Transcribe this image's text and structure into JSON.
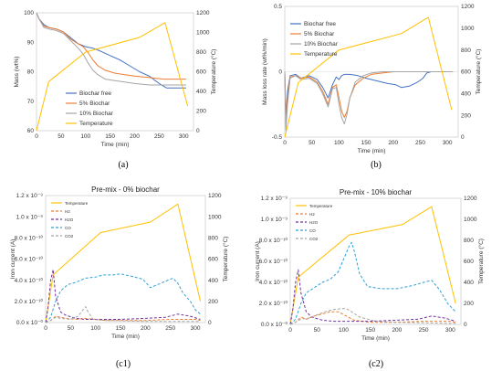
{
  "chart_data": [
    {
      "id": "a",
      "type": "line",
      "caption": "(a)",
      "title": "",
      "xlabel": "Time (min)",
      "ylabel": "Mass (wt%)",
      "y2label": "Temperature (°C)",
      "xlim": [
        0,
        320
      ],
      "ylim": [
        60,
        100
      ],
      "y2lim": [
        0,
        1200
      ],
      "xticks": [
        0,
        50,
        100,
        150,
        200,
        250,
        300
      ],
      "yticks": [
        60,
        70,
        80,
        90,
        100
      ],
      "y2ticks": [
        0,
        200,
        400,
        600,
        800,
        1000,
        1200
      ],
      "legend_position": "lower-center",
      "series": [
        {
          "name": "Biochar free",
          "axis": "y",
          "color": "#4472c4",
          "dash": "",
          "x": [
            0,
            5,
            15,
            25,
            40,
            55,
            70,
            85,
            100,
            115,
            130,
            150,
            170,
            190,
            210,
            230,
            250,
            265,
            280,
            295,
            305
          ],
          "y": [
            100,
            98,
            96,
            95,
            94.5,
            93.5,
            91.5,
            89.5,
            88.5,
            88,
            87,
            85.5,
            84,
            82,
            80,
            78.5,
            76,
            74.5,
            74.5,
            74.5,
            74.5
          ]
        },
        {
          "name": "5% Biochar",
          "axis": "y",
          "color": "#ed7d31",
          "dash": "",
          "x": [
            0,
            5,
            15,
            25,
            40,
            55,
            70,
            85,
            95,
            105,
            115,
            125,
            140,
            160,
            180,
            200,
            230,
            260,
            280,
            305
          ],
          "y": [
            100,
            98,
            95.5,
            95,
            94.5,
            93.5,
            91,
            89.5,
            88.5,
            86.5,
            84,
            82,
            80.5,
            79.5,
            79,
            78.5,
            78,
            77.5,
            77.5,
            77.5
          ]
        },
        {
          "name": "10% Biochar",
          "axis": "y",
          "color": "#a5a5a5",
          "dash": "",
          "x": [
            0,
            5,
            15,
            25,
            40,
            55,
            70,
            85,
            95,
            105,
            115,
            125,
            140,
            160,
            180,
            200,
            230,
            260,
            280,
            305
          ],
          "y": [
            100,
            98,
            95,
            94.5,
            94,
            93,
            90.5,
            88,
            86,
            83,
            80.5,
            79,
            77.5,
            77,
            76.5,
            76,
            75.5,
            75.5,
            75.5,
            75.5
          ]
        },
        {
          "name": "Temperature",
          "axis": "y2",
          "color": "#ffc000",
          "dash": "",
          "x": [
            0,
            25,
            100,
            210,
            262,
            308
          ],
          "y": [
            0,
            500,
            800,
            950,
            1100,
            250
          ]
        }
      ]
    },
    {
      "id": "b",
      "type": "line",
      "caption": "(b)",
      "title": "",
      "xlabel": "Time (min)",
      "ylabel": "Mass loss rate (wt%/min)",
      "y2label": "Temperature (°C)",
      "xlim": [
        0,
        320
      ],
      "ylim": [
        -0.5,
        0.5
      ],
      "y2lim": [
        0,
        1200
      ],
      "xticks": [
        0,
        50,
        100,
        150,
        200,
        250,
        300
      ],
      "yticks": [
        -0.5,
        0,
        0.5
      ],
      "y2ticks": [
        0,
        200,
        400,
        600,
        800,
        1000,
        1200
      ],
      "legend_position": "top-left",
      "series": [
        {
          "name": "Biochar free",
          "axis": "y",
          "color": "#4472c4",
          "dash": "",
          "x": [
            0,
            2,
            5,
            10,
            20,
            30,
            45,
            60,
            70,
            80,
            88,
            95,
            100,
            105,
            110,
            120,
            135,
            150,
            170,
            190,
            205,
            215,
            230,
            245,
            255,
            262,
            270,
            285,
            300,
            310
          ],
          "y": [
            0,
            -0.35,
            -0.15,
            -0.03,
            -0.02,
            -0.05,
            -0.03,
            -0.06,
            -0.12,
            -0.2,
            -0.1,
            -0.04,
            -0.06,
            -0.03,
            -0.02,
            -0.02,
            -0.03,
            -0.05,
            -0.07,
            -0.09,
            -0.1,
            -0.12,
            -0.11,
            -0.08,
            -0.05,
            -0.01,
            0,
            0,
            0,
            0
          ]
        },
        {
          "name": "5% Biochar",
          "axis": "y",
          "color": "#ed7d31",
          "dash": "",
          "x": [
            0,
            2,
            5,
            10,
            20,
            30,
            45,
            60,
            70,
            80,
            88,
            95,
            100,
            105,
            110,
            115,
            120,
            130,
            145,
            160,
            180,
            200,
            230,
            260,
            270,
            285,
            300,
            310
          ],
          "y": [
            0,
            -0.4,
            -0.2,
            -0.04,
            -0.03,
            -0.05,
            -0.04,
            -0.08,
            -0.15,
            -0.25,
            -0.12,
            -0.1,
            -0.2,
            -0.3,
            -0.35,
            -0.3,
            -0.2,
            -0.1,
            -0.05,
            -0.02,
            -0.01,
            0,
            0,
            0,
            0,
            0,
            0,
            0
          ]
        },
        {
          "name": "10% Biochar",
          "axis": "y",
          "color": "#a5a5a5",
          "dash": "",
          "x": [
            0,
            2,
            5,
            10,
            20,
            30,
            45,
            60,
            70,
            80,
            88,
            95,
            100,
            105,
            110,
            115,
            120,
            130,
            145,
            160,
            180,
            200,
            230,
            260,
            270,
            285,
            300,
            310
          ],
          "y": [
            0,
            -0.45,
            -0.25,
            -0.05,
            -0.03,
            -0.06,
            -0.05,
            -0.09,
            -0.17,
            -0.27,
            -0.13,
            -0.12,
            -0.25,
            -0.35,
            -0.4,
            -0.32,
            -0.2,
            -0.08,
            -0.03,
            -0.01,
            0,
            0,
            0,
            0,
            0,
            0,
            0,
            0
          ]
        },
        {
          "name": "Temperature",
          "axis": "y2",
          "color": "#ffc000",
          "dash": "",
          "x": [
            0,
            25,
            100,
            215,
            265,
            308
          ],
          "y": [
            0,
            500,
            800,
            950,
            1100,
            250
          ]
        }
      ]
    },
    {
      "id": "c1",
      "type": "line",
      "caption": "(c1)",
      "title": "Pre-mix - 0% biochar",
      "xlabel": "Time (min)",
      "ylabel": "Iron current (A)",
      "y2label": "Temperature (°C)",
      "xlim": [
        0,
        320
      ],
      "ylim": [
        0,
        1.2
      ],
      "y2lim": [
        0,
        1200
      ],
      "xticks": [
        0,
        50,
        100,
        150,
        200,
        250,
        300
      ],
      "yticks": [
        0,
        0.2,
        0.4,
        0.6,
        0.8,
        1.0,
        1.2
      ],
      "yticklabels": [
        "0.0 x 10⁻⁰",
        "2.0 x 10⁻¹⁰",
        "4.0 x 10⁻¹⁰",
        "6.0 x 10⁻¹⁰",
        "8.0 x 10⁻¹⁰",
        "1.0 x 10⁻⁹",
        "1.2 x 10⁻⁹"
      ],
      "y2ticks": [
        0,
        200,
        400,
        600,
        800,
        1000,
        1200
      ],
      "legend_position": "top-left",
      "series": [
        {
          "name": "Temperature",
          "axis": "y2",
          "color": "#ffc000",
          "dash": "",
          "x": [
            0,
            15,
            110,
            210,
            265,
            310
          ],
          "y": [
            0,
            450,
            850,
            950,
            1120,
            200
          ]
        },
        {
          "name": "H2",
          "axis": "y",
          "color": "#ed7d31",
          "dash": "3,2",
          "x": [
            0,
            10,
            20,
            30,
            40,
            60,
            80,
            100,
            120,
            150,
            200,
            250,
            300,
            310
          ],
          "y": [
            0,
            0.02,
            0.06,
            0.05,
            0.04,
            0.03,
            0.04,
            0.03,
            0.02,
            0.02,
            0.02,
            0.03,
            0.03,
            0.02
          ]
        },
        {
          "name": "H2O",
          "axis": "y",
          "color": "#7030a0",
          "dash": "3,2",
          "x": [
            0,
            5,
            10,
            15,
            20,
            30,
            40,
            60,
            80,
            100,
            150,
            200,
            240,
            265,
            290,
            310
          ],
          "y": [
            0,
            0.15,
            0.4,
            0.5,
            0.25,
            0.1,
            0.07,
            0.04,
            0.03,
            0.03,
            0.03,
            0.04,
            0.05,
            0.08,
            0.06,
            0.03
          ]
        },
        {
          "name": "CO",
          "axis": "y",
          "color": "#2e9fd6",
          "dash": "3,2",
          "x": [
            0,
            10,
            20,
            30,
            45,
            60,
            80,
            100,
            115,
            135,
            150,
            170,
            195,
            210,
            225,
            245,
            255,
            265,
            275,
            290,
            300,
            310
          ],
          "y": [
            0,
            0.05,
            0.2,
            0.3,
            0.36,
            0.38,
            0.42,
            0.43,
            0.45,
            0.45,
            0.46,
            0.44,
            0.41,
            0.33,
            0.36,
            0.4,
            0.42,
            0.37,
            0.28,
            0.2,
            0.12,
            0.08
          ]
        },
        {
          "name": "CO2",
          "axis": "y",
          "color": "#a5a5a5",
          "dash": "3,2",
          "x": [
            0,
            10,
            20,
            30,
            50,
            65,
            75,
            80,
            85,
            95,
            120,
            200,
            300,
            310
          ],
          "y": [
            0,
            0.02,
            0.05,
            0.04,
            0.03,
            0.06,
            0.12,
            0.15,
            0.1,
            0.03,
            0.02,
            0.01,
            0.01,
            0.01
          ]
        }
      ]
    },
    {
      "id": "c2",
      "type": "line",
      "caption": "(c2)",
      "title": "Pre-mix - 10% biochar",
      "xlabel": "Time (min)",
      "ylabel": "Iron current (A)",
      "y2label": "Temperature (°C)",
      "xlim": [
        0,
        320
      ],
      "ylim": [
        0,
        1.2
      ],
      "y2lim": [
        0,
        1200
      ],
      "xticks": [
        0,
        50,
        100,
        150,
        200,
        250,
        300
      ],
      "yticks": [
        0,
        0.2,
        0.4,
        0.6,
        0.8,
        1.0,
        1.2
      ],
      "yticklabels": [
        "0.0 x 10⁻⁰",
        "2.0 x 10⁻¹⁰",
        "4.0 x 10⁻¹⁰",
        "6.0 x 10⁻¹⁰",
        "8.0 x 10⁻¹⁰",
        "1.0 x 10⁻⁹",
        "1.2 x 10⁻⁹"
      ],
      "y2ticks": [
        0,
        200,
        400,
        600,
        800,
        1000,
        1200
      ],
      "legend_position": "top-left",
      "series": [
        {
          "name": "Temperature",
          "axis": "y2",
          "color": "#ffc000",
          "dash": "",
          "x": [
            0,
            15,
            110,
            210,
            265,
            310
          ],
          "y": [
            0,
            450,
            850,
            950,
            1120,
            200
          ]
        },
        {
          "name": "H2",
          "axis": "y",
          "color": "#ed7d31",
          "dash": "3,2",
          "x": [
            0,
            10,
            20,
            30,
            45,
            60,
            75,
            90,
            105,
            120,
            150,
            200,
            250,
            300,
            310
          ],
          "y": [
            0,
            0.02,
            0.07,
            0.05,
            0.08,
            0.1,
            0.12,
            0.12,
            0.08,
            0.04,
            0.02,
            0.02,
            0.03,
            0.03,
            0.02
          ]
        },
        {
          "name": "H2O",
          "axis": "y",
          "color": "#7030a0",
          "dash": "3,2",
          "x": [
            0,
            5,
            10,
            15,
            20,
            30,
            40,
            60,
            80,
            100,
            150,
            200,
            240,
            265,
            290,
            310
          ],
          "y": [
            0,
            0.15,
            0.4,
            0.52,
            0.3,
            0.12,
            0.07,
            0.04,
            0.03,
            0.03,
            0.03,
            0.04,
            0.05,
            0.08,
            0.06,
            0.03
          ]
        },
        {
          "name": "CO",
          "axis": "y",
          "color": "#2e9fd6",
          "dash": "3,2",
          "x": [
            0,
            10,
            20,
            30,
            45,
            60,
            75,
            90,
            100,
            110,
            115,
            120,
            130,
            145,
            170,
            200,
            230,
            250,
            265,
            280,
            295,
            310
          ],
          "y": [
            0,
            0.05,
            0.2,
            0.3,
            0.35,
            0.4,
            0.43,
            0.5,
            0.62,
            0.74,
            0.78,
            0.7,
            0.48,
            0.36,
            0.34,
            0.34,
            0.37,
            0.4,
            0.42,
            0.33,
            0.2,
            0.12
          ]
        },
        {
          "name": "CO2",
          "axis": "y",
          "color": "#a5a5a5",
          "dash": "3,2",
          "x": [
            0,
            10,
            20,
            35,
            50,
            65,
            80,
            95,
            105,
            115,
            130,
            160,
            200,
            300,
            310
          ],
          "y": [
            0,
            0.02,
            0.05,
            0.06,
            0.09,
            0.12,
            0.14,
            0.15,
            0.15,
            0.12,
            0.07,
            0.03,
            0.02,
            0.01,
            0.01
          ]
        }
      ]
    }
  ]
}
